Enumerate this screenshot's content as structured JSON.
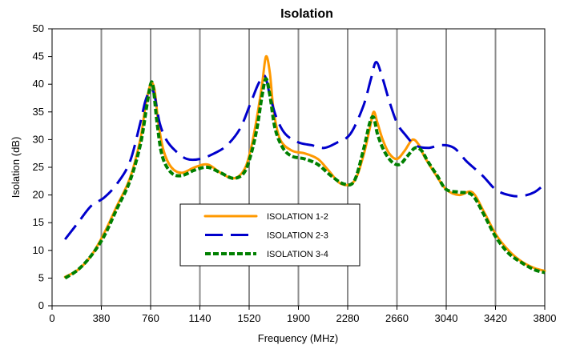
{
  "chart_data": {
    "type": "line",
    "title": "Isolation",
    "xlabel": "Frequency (MHz)",
    "ylabel": "Isolation (dB)",
    "xlim": [
      0,
      3800
    ],
    "ylim": [
      0,
      50
    ],
    "xticks": [
      0,
      380,
      760,
      1140,
      1520,
      1900,
      2280,
      2660,
      3040,
      3420,
      3800
    ],
    "yticks": [
      0,
      5,
      10,
      15,
      20,
      25,
      30,
      35,
      40,
      45,
      50
    ],
    "grid": "vertical",
    "legend_position": "center-left, inside plot",
    "series": [
      {
        "name": "ISOLATION 1-2",
        "color": "#ff9900",
        "style": "solid",
        "points": [
          [
            100,
            5.2
          ],
          [
            200,
            6.5
          ],
          [
            300,
            9.0
          ],
          [
            400,
            13.0
          ],
          [
            500,
            18.0
          ],
          [
            600,
            23.0
          ],
          [
            680,
            30.0
          ],
          [
            720,
            36.0
          ],
          [
            760,
            40.0
          ],
          [
            790,
            39.0
          ],
          [
            820,
            33.0
          ],
          [
            860,
            28.0
          ],
          [
            920,
            25.0
          ],
          [
            1000,
            24.0
          ],
          [
            1100,
            25.0
          ],
          [
            1200,
            25.5
          ],
          [
            1300,
            24.0
          ],
          [
            1400,
            23.0
          ],
          [
            1480,
            24.5
          ],
          [
            1530,
            28.0
          ],
          [
            1580,
            34.0
          ],
          [
            1620,
            40.0
          ],
          [
            1650,
            45.0
          ],
          [
            1680,
            42.0
          ],
          [
            1710,
            35.0
          ],
          [
            1760,
            30.0
          ],
          [
            1850,
            28.0
          ],
          [
            1950,
            27.5
          ],
          [
            2050,
            26.5
          ],
          [
            2130,
            24.5
          ],
          [
            2230,
            22.0
          ],
          [
            2330,
            22.5
          ],
          [
            2400,
            27.0
          ],
          [
            2450,
            32.0
          ],
          [
            2480,
            35.0
          ],
          [
            2510,
            33.0
          ],
          [
            2550,
            30.0
          ],
          [
            2600,
            27.5
          ],
          [
            2660,
            26.5
          ],
          [
            2720,
            28.0
          ],
          [
            2780,
            30.0
          ],
          [
            2830,
            29.0
          ],
          [
            2870,
            27.0
          ],
          [
            2950,
            24.0
          ],
          [
            3040,
            21.0
          ],
          [
            3140,
            20.0
          ],
          [
            3240,
            20.5
          ],
          [
            3330,
            17.0
          ],
          [
            3420,
            13.0
          ],
          [
            3520,
            10.0
          ],
          [
            3620,
            8.0
          ],
          [
            3720,
            6.8
          ],
          [
            3800,
            6.3
          ]
        ]
      },
      {
        "name": "ISOLATION 2-3",
        "color": "#0000cc",
        "style": "dashed",
        "points": [
          [
            100,
            12.0
          ],
          [
            200,
            15.0
          ],
          [
            300,
            18.0
          ],
          [
            400,
            19.5
          ],
          [
            500,
            22.0
          ],
          [
            600,
            26.0
          ],
          [
            680,
            33.0
          ],
          [
            720,
            37.0
          ],
          [
            760,
            39.0
          ],
          [
            790,
            38.0
          ],
          [
            830,
            33.0
          ],
          [
            880,
            30.0
          ],
          [
            950,
            28.0
          ],
          [
            1040,
            26.5
          ],
          [
            1140,
            26.5
          ],
          [
            1250,
            27.5
          ],
          [
            1350,
            29.0
          ],
          [
            1450,
            32.0
          ],
          [
            1530,
            36.5
          ],
          [
            1590,
            40.0
          ],
          [
            1640,
            41.5
          ],
          [
            1680,
            38.0
          ],
          [
            1730,
            34.0
          ],
          [
            1800,
            31.0
          ],
          [
            1900,
            29.5
          ],
          [
            2000,
            29.0
          ],
          [
            2100,
            28.5
          ],
          [
            2200,
            29.5
          ],
          [
            2300,
            31.0
          ],
          [
            2400,
            36.0
          ],
          [
            2460,
            41.0
          ],
          [
            2500,
            44.0
          ],
          [
            2550,
            41.0
          ],
          [
            2600,
            37.0
          ],
          [
            2660,
            33.0
          ],
          [
            2720,
            31.0
          ],
          [
            2800,
            29.0
          ],
          [
            2900,
            28.5
          ],
          [
            3000,
            29.0
          ],
          [
            3100,
            28.5
          ],
          [
            3200,
            26.0
          ],
          [
            3320,
            23.5
          ],
          [
            3420,
            21.0
          ],
          [
            3520,
            20.0
          ],
          [
            3620,
            19.8
          ],
          [
            3720,
            20.5
          ],
          [
            3800,
            22.0
          ]
        ]
      },
      {
        "name": "ISOLATION 3-4",
        "color": "#008000",
        "style": "dotted",
        "points": [
          [
            100,
            5.0
          ],
          [
            200,
            6.5
          ],
          [
            300,
            9.0
          ],
          [
            400,
            12.5
          ],
          [
            500,
            17.5
          ],
          [
            600,
            22.5
          ],
          [
            680,
            29.0
          ],
          [
            730,
            36.0
          ],
          [
            760,
            40.0
          ],
          [
            780,
            39.5
          ],
          [
            810,
            33.0
          ],
          [
            850,
            27.0
          ],
          [
            920,
            24.0
          ],
          [
            1000,
            23.5
          ],
          [
            1100,
            24.5
          ],
          [
            1200,
            25.0
          ],
          [
            1300,
            24.0
          ],
          [
            1400,
            23.0
          ],
          [
            1480,
            24.0
          ],
          [
            1530,
            27.0
          ],
          [
            1580,
            32.0
          ],
          [
            1620,
            38.0
          ],
          [
            1650,
            41.0
          ],
          [
            1680,
            38.0
          ],
          [
            1720,
            32.0
          ],
          [
            1780,
            28.5
          ],
          [
            1850,
            27.0
          ],
          [
            1950,
            26.5
          ],
          [
            2050,
            25.5
          ],
          [
            2150,
            23.5
          ],
          [
            2250,
            22.0
          ],
          [
            2330,
            22.5
          ],
          [
            2400,
            28.0
          ],
          [
            2450,
            33.0
          ],
          [
            2480,
            34.0
          ],
          [
            2510,
            31.0
          ],
          [
            2560,
            28.0
          ],
          [
            2620,
            26.0
          ],
          [
            2680,
            25.5
          ],
          [
            2740,
            27.0
          ],
          [
            2800,
            28.5
          ],
          [
            2850,
            28.0
          ],
          [
            2900,
            26.0
          ],
          [
            2970,
            23.5
          ],
          [
            3040,
            21.0
          ],
          [
            3140,
            20.5
          ],
          [
            3240,
            20.0
          ],
          [
            3330,
            16.5
          ],
          [
            3420,
            12.5
          ],
          [
            3520,
            9.5
          ],
          [
            3620,
            7.8
          ],
          [
            3720,
            6.5
          ],
          [
            3800,
            6.0
          ]
        ]
      }
    ]
  }
}
